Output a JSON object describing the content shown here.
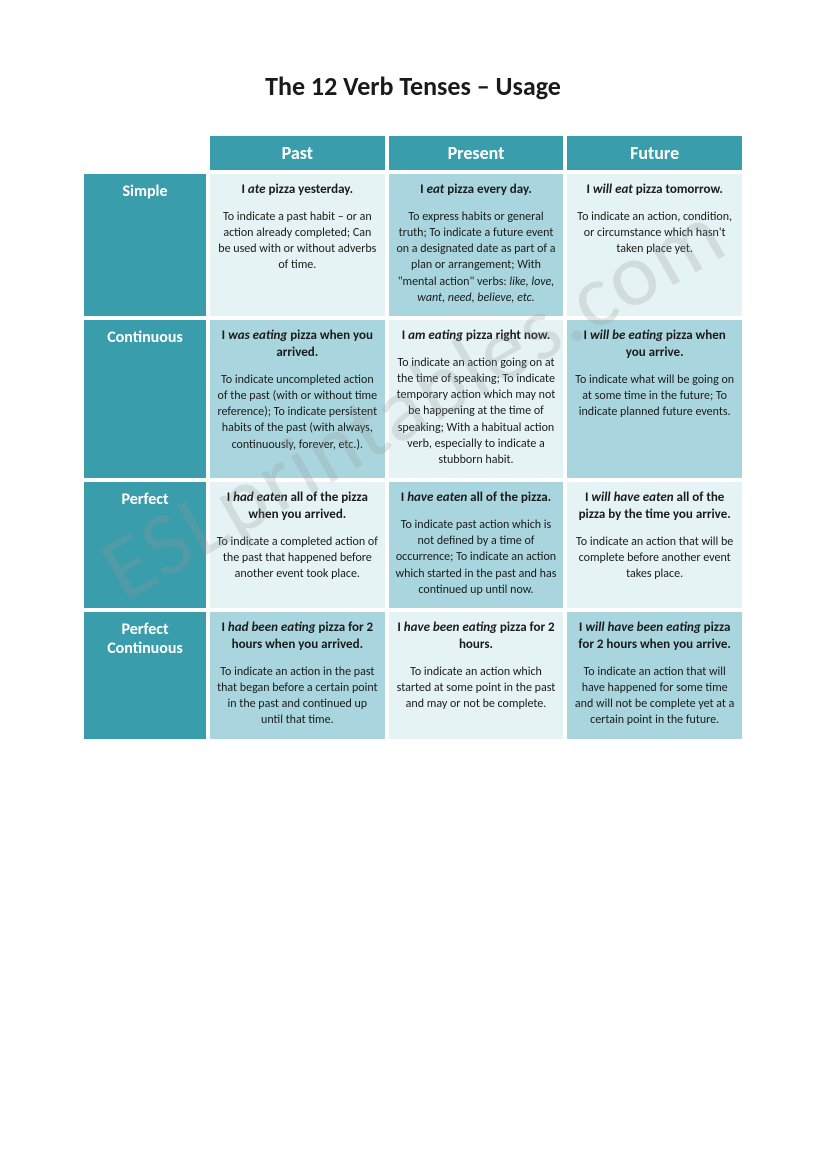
{
  "title": "The 12 Verb Tenses – Usage",
  "watermark": "ESLprintables.com",
  "columns": [
    "Past",
    "Present",
    "Future"
  ],
  "rows": [
    "Simple",
    "Continuous",
    "Perfect",
    "Perfect Continuous"
  ],
  "colors": {
    "header_bg": "#3a9dac",
    "header_text": "#ffffff",
    "light_cell": "#e5f3f5",
    "mid_cell": "#a9d6de",
    "page_bg": "#ffffff",
    "text": "#1a1a1a"
  },
  "cells": {
    "simple_past": {
      "ex_pre": "I ",
      "ex_verb": "ate",
      "ex_post": " pizza yesterday.",
      "desc": "To indicate a past habit – or an action already completed; Can be used with or without adverbs of time."
    },
    "simple_present": {
      "ex_pre": "I ",
      "ex_verb": "eat",
      "ex_post": " pizza every day.",
      "desc": "To express habits or general truth; To indicate a future event on a designated date as part of a plan or arrangement; With \"mental action\" verbs: ",
      "desc_ital": "like, love, want, need, believe, etc."
    },
    "simple_future": {
      "ex_pre": "I ",
      "ex_verb": "will eat",
      "ex_post": " pizza tomorrow.",
      "desc": "To indicate an action, condition, or circumstance which hasn't taken place yet."
    },
    "cont_past": {
      "ex_pre": "I ",
      "ex_verb": "was eating",
      "ex_post": " pizza when you arrived.",
      "desc": "To indicate uncompleted action of the past (with or without time reference); To indicate persistent habits of the past (with always, continuously, forever, etc.)."
    },
    "cont_present": {
      "ex_pre": "I ",
      "ex_verb": "am eating",
      "ex_post": " pizza right now.",
      "desc": "To indicate an action going on at the time of speaking; To indicate temporary action which may not be happening at the time of speaking; With a habitual action verb, especially to indicate a stubborn habit."
    },
    "cont_future": {
      "ex_pre": "I ",
      "ex_verb": "will be eating",
      "ex_post": " pizza when you arrive.",
      "desc": "To indicate what will be going on at some time in the future; To indicate planned future events."
    },
    "perf_past": {
      "ex_pre": "I ",
      "ex_verb": "had eaten",
      "ex_post": " all of the pizza when you arrived.",
      "desc": "To indicate a completed action of the past that happened before another event took place."
    },
    "perf_present": {
      "ex_pre": "I ",
      "ex_verb": "have eaten",
      "ex_post": " all of the pizza.",
      "desc": "To indicate past action which is not defined by a time of occurrence; To indicate an action which started in the past and has continued up until now."
    },
    "perf_future": {
      "ex_pre": "I ",
      "ex_verb": "will have eaten",
      "ex_post": " all of the pizza by the time you arrive.",
      "desc": "To indicate an action that will be complete before another event takes place."
    },
    "pc_past": {
      "ex_pre": "I ",
      "ex_verb": "had been eating",
      "ex_post": " pizza for 2 hours when you arrived.",
      "desc": "To indicate an action in the past that began before a certain point in the past and continued up until that time."
    },
    "pc_present": {
      "ex_pre": "I ",
      "ex_verb": "have been eating",
      "ex_post": " pizza for 2 hours.",
      "desc": "To indicate an action which started at some point in the past and may or not be complete."
    },
    "pc_future": {
      "ex_pre": "I ",
      "ex_verb": "will have been eating",
      "ex_post": " pizza for 2 hours when you arrive.",
      "desc": "To indicate an action that will have happened for some time and will not be complete yet at a certain point in the future."
    }
  }
}
